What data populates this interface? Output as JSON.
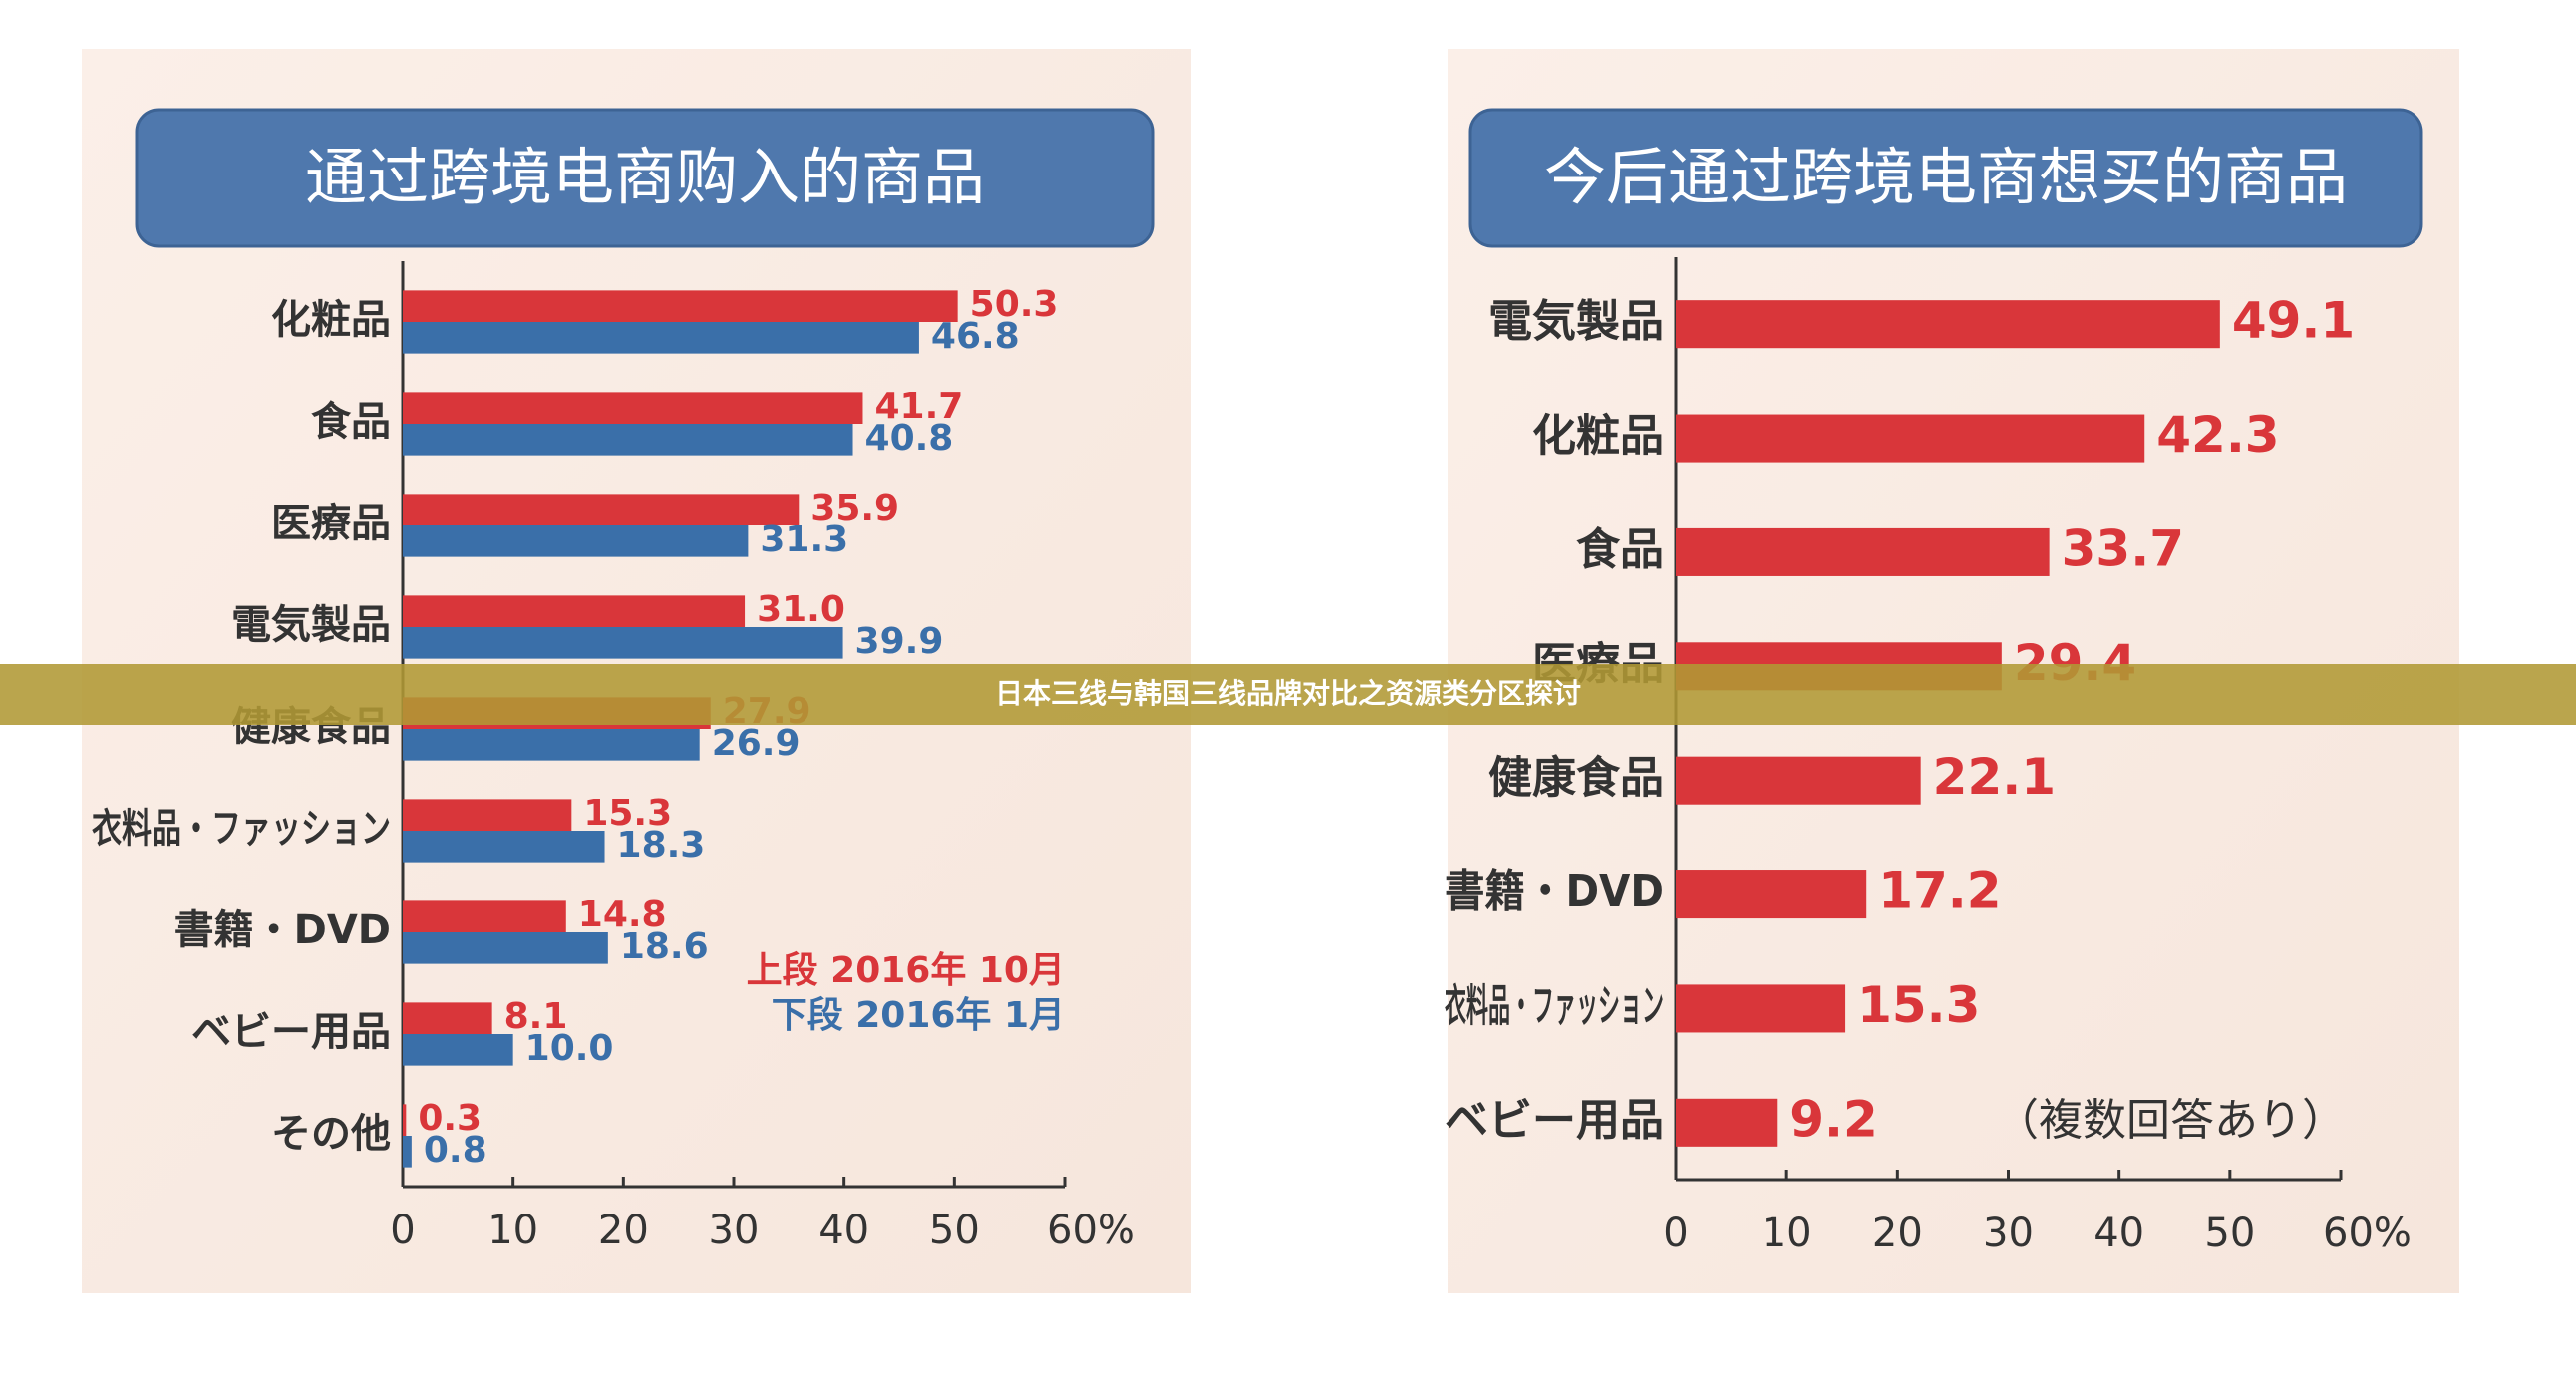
{
  "banner": {
    "text": "日本三线与韩国三线品牌对比之资源类分区探讨"
  },
  "chart_data": [
    {
      "type": "bar",
      "title": "通过跨境电商购入的商品",
      "categories": [
        "化粧品",
        "食品",
        "医療品",
        "電気製品",
        "健康食品",
        "衣料品・ファッション",
        "書籍・DVD",
        "ベビー用品",
        "その他"
      ],
      "series": [
        {
          "name": "上段 2016年 10月",
          "color": "#d9363a",
          "values": [
            50.3,
            41.7,
            35.9,
            31.0,
            27.9,
            15.3,
            14.8,
            8.1,
            0.3
          ],
          "value_labels": [
            "50.3",
            "41.7",
            "35.9",
            "31.0",
            "27.9",
            "15.3",
            "14.8",
            "8.1",
            "0.3"
          ]
        },
        {
          "name": "下段 2016年 1月",
          "color": "#3a6fa9",
          "values": [
            46.8,
            40.8,
            31.3,
            39.9,
            26.9,
            18.3,
            18.6,
            10.0,
            0.8
          ],
          "value_labels": [
            "46.8",
            "40.8",
            "31.3",
            "39.9",
            "26.9",
            "18.3",
            "18.6",
            "10.0",
            "0.8"
          ]
        }
      ],
      "xlim": [
        0,
        60
      ],
      "xticks": [
        0,
        10,
        20,
        30,
        40,
        50,
        {
          "value": 60,
          "label": "60%"
        }
      ],
      "legend": "lower-right"
    },
    {
      "type": "bar",
      "title": "今后通过跨境电商想买的商品",
      "categories": [
        "電気製品",
        "化粧品",
        "食品",
        "医療品",
        "健康食品",
        "書籍・DVD",
        "衣料品・ファッション",
        "ベビー用品"
      ],
      "series": [
        {
          "color": "#d9363a",
          "values": [
            49.1,
            42.3,
            33.7,
            29.4,
            22.1,
            17.2,
            15.3,
            9.2
          ]
        }
      ],
      "annotation": "（複数回答あり）",
      "xlim": [
        0,
        60
      ],
      "xticks": [
        0,
        10,
        20,
        30,
        40,
        50,
        {
          "value": 60,
          "label": "60%"
        }
      ]
    }
  ]
}
